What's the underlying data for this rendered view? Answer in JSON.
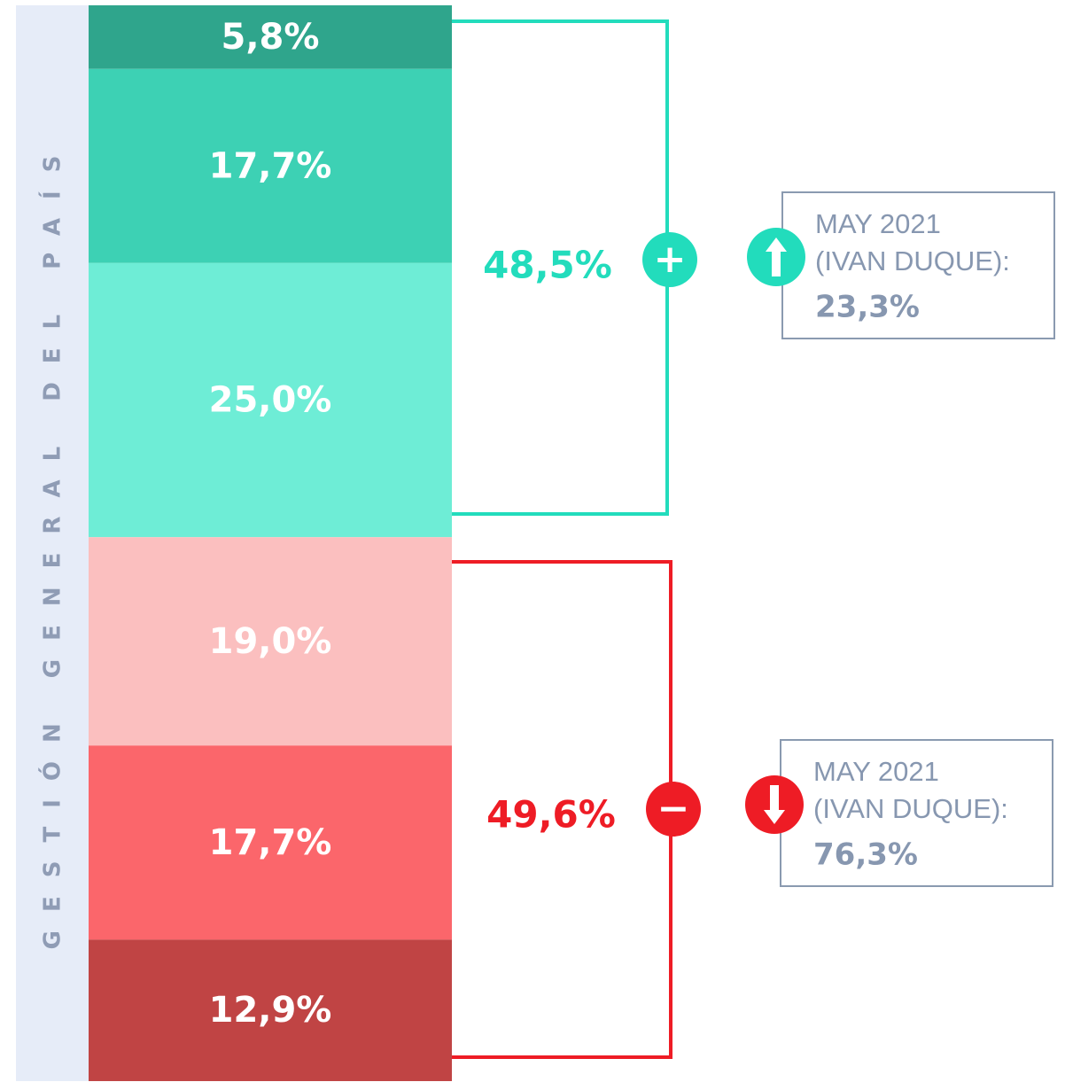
{
  "chart_data": {
    "type": "stacked_bar",
    "axis_label": "GESTIÓN GENERAL DEL PAÍS",
    "segments": [
      {
        "value": 5.8,
        "label": "5,8%",
        "color": "#2fa58c"
      },
      {
        "value": 17.7,
        "label": "17,7%",
        "color": "#3dd1b4"
      },
      {
        "value": 25.0,
        "label": "25,0%",
        "color": "#6eedd6"
      },
      {
        "value": 19.0,
        "label": "19,0%",
        "color": "#fbbfbf"
      },
      {
        "value": 17.7,
        "label": "17,7%",
        "color": "#fb666b"
      },
      {
        "value": 12.9,
        "label": "12,9%",
        "color": "#c04444"
      }
    ],
    "groups": [
      {
        "symbol": "+",
        "value": 48.5,
        "label": "48,5%",
        "color": "#22dcbc",
        "note": [
          "MAY 2021",
          "(IVAN DUQUE):"
        ],
        "note_value": 23.3,
        "note_label": "23,3%"
      },
      {
        "symbol": "−",
        "value": 49.6,
        "label": "49,6%",
        "color": "#ee1c25",
        "note": [
          "MAY 2021",
          "(IVAN DUQUE):"
        ],
        "note_value": 76.3,
        "note_label": "76,3%"
      }
    ]
  }
}
